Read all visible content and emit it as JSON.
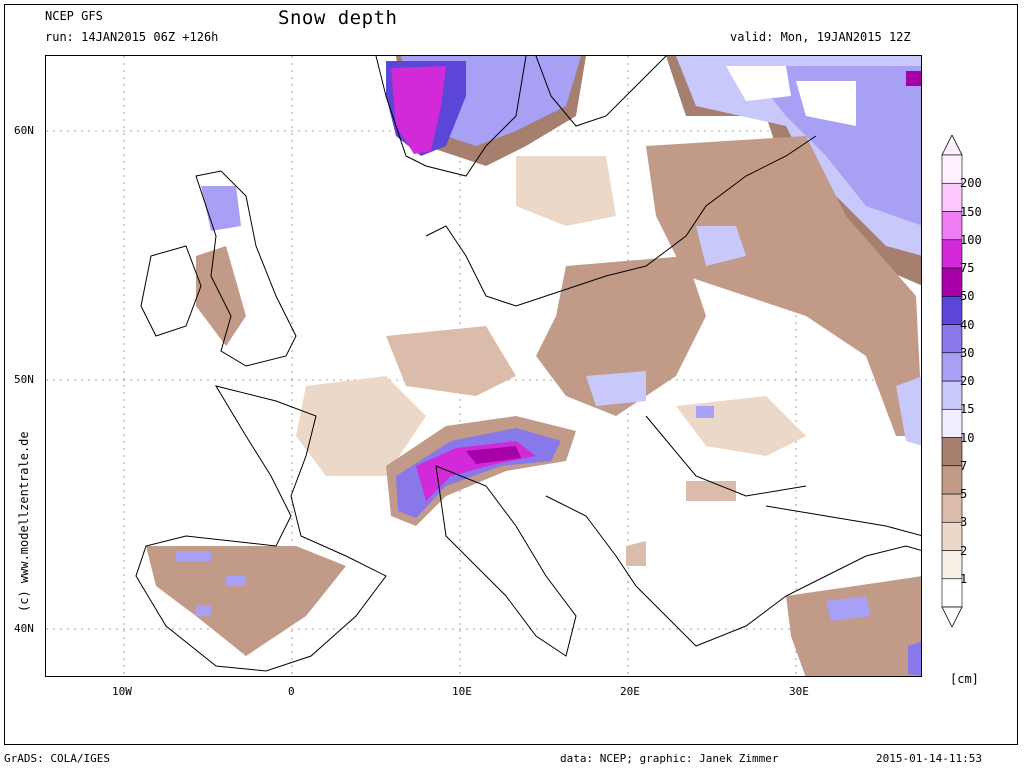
{
  "header": {
    "model": "NCEP GFS",
    "run": "run: 14JAN2015 06Z +126h",
    "title": "Snow depth",
    "valid": "valid: Mon, 19JAN2015 12Z"
  },
  "side_credit": "(c) www.modellzentrale.de",
  "axes": {
    "lat_labels": [
      "60N",
      "50N",
      "40N"
    ],
    "lon_labels": [
      "10W",
      "0",
      "10E",
      "20E",
      "30E"
    ]
  },
  "legend": {
    "unit": "[cm]",
    "levels": [
      "1",
      "2",
      "3",
      "5",
      "7",
      "10",
      "15",
      "20",
      "30",
      "40",
      "50",
      "75",
      "100",
      "150",
      "200"
    ],
    "colors": [
      "#ffffff",
      "#f7eee6",
      "#ecd8c8",
      "#dbbcaa",
      "#c29a88",
      "#a77f6e",
      "#eeeeff",
      "#c8c8fa",
      "#a8a0f4",
      "#8878ea",
      "#5b46d8",
      "#a800a8",
      "#d22ad8",
      "#ef7cf2",
      "#fcc8fc",
      "#fff0ff"
    ]
  },
  "footer": {
    "left": "GrADS: COLA/IGES",
    "center": "data: NCEP; graphic: Janek Zimmer",
    "right": "2015-01-14-11:53"
  }
}
